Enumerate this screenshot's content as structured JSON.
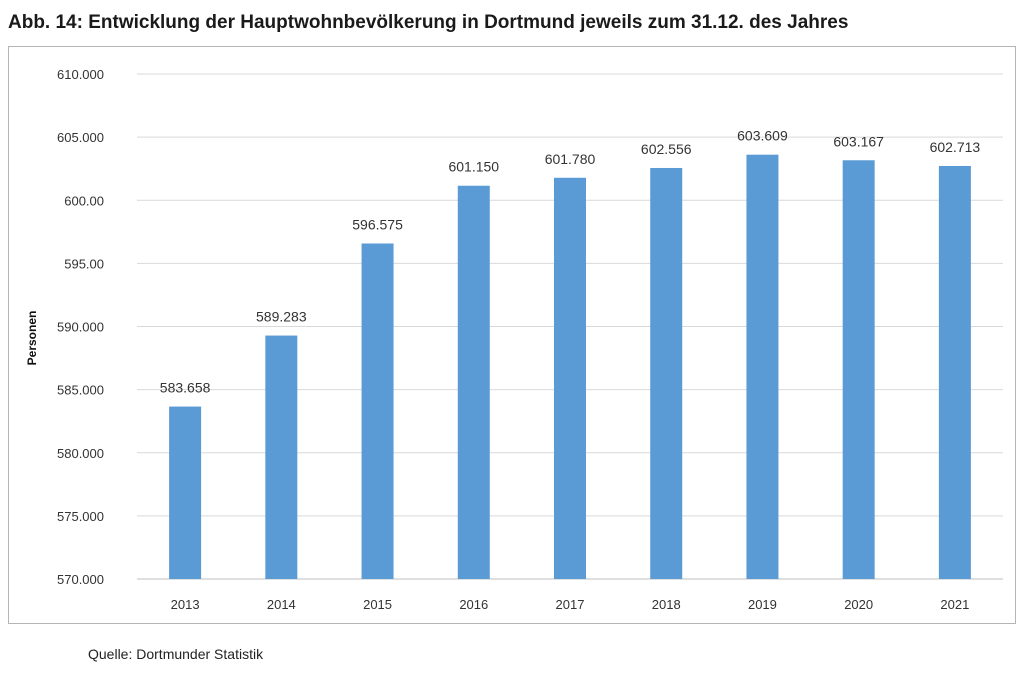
{
  "chart_data": {
    "type": "bar",
    "title": "Abb. 14: Entwicklung der Hauptwohnbevölkerung in Dortmund jeweils zum 31.12. des Jahres",
    "xlabel": "",
    "ylabel": "Personen",
    "categories": [
      "2013",
      "2014",
      "2015",
      "2016",
      "2017",
      "2018",
      "2019",
      "2020",
      "2021"
    ],
    "values": [
      583658,
      589283,
      596575,
      601150,
      601780,
      602556,
      603609,
      603167,
      602713
    ],
    "value_labels": [
      "583.658",
      "589.283",
      "596.575",
      "601.150",
      "601.780",
      "602.556",
      "603.609",
      "603.167",
      "602.713"
    ],
    "ylim": [
      570000,
      610000
    ],
    "yticks": [
      570000,
      575000,
      580000,
      585000,
      590000,
      595000,
      600000,
      605000,
      610000
    ],
    "ytick_labels": [
      "570.000",
      "575.000",
      "580.000",
      "585.000",
      "590.000",
      "595.00",
      "600.00",
      "605.000",
      "610.000"
    ],
    "grid": true,
    "bar_color": "#5b9bd5",
    "source": "Quelle: Dortmunder Statistik"
  }
}
